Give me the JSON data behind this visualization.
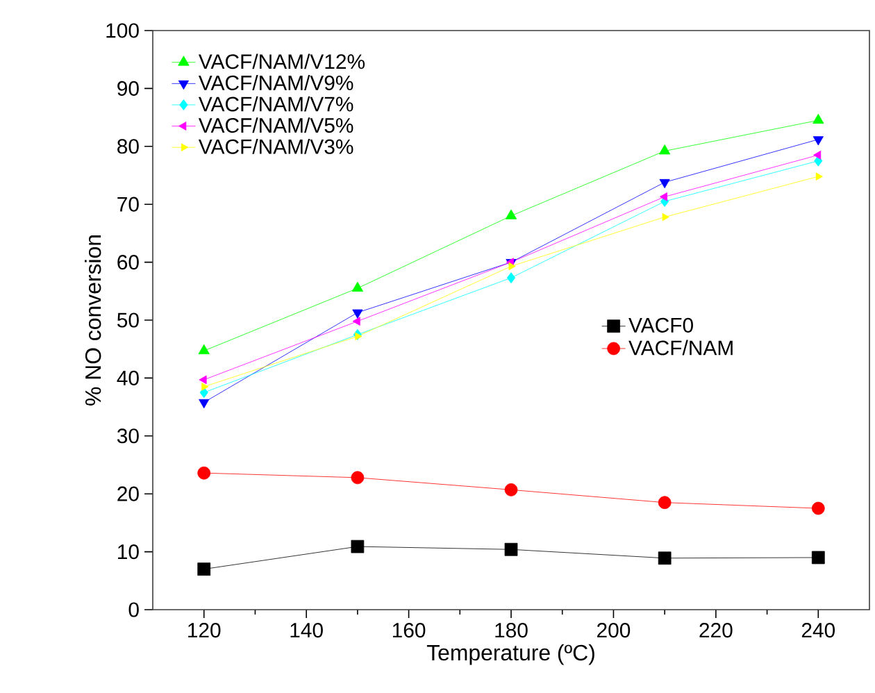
{
  "chart_data": {
    "type": "line",
    "xlabel": "Temperature (ºC)",
    "ylabel": "% NO conversion",
    "x": [
      120,
      150,
      180,
      210,
      240
    ],
    "xlim": [
      110,
      250
    ],
    "xticks": [
      120,
      140,
      160,
      180,
      200,
      220,
      240
    ],
    "ylim": [
      0,
      100
    ],
    "yticks": [
      0,
      10,
      20,
      30,
      40,
      50,
      60,
      70,
      80,
      90,
      100
    ],
    "grid": false,
    "legend": "top left",
    "series": [
      {
        "name": "VACF/NAM/V12%",
        "color": "#00ff00",
        "marker": "triangle",
        "values": [
          44.7,
          55.5,
          68.0,
          79.2,
          84.5
        ]
      },
      {
        "name": "VACF/NAM/V9%",
        "color": "#0000ff",
        "marker": "triangle-down",
        "values": [
          35.8,
          51.3,
          60.0,
          73.8,
          81.2
        ]
      },
      {
        "name": "VACF/NAM/V7%",
        "color": "#00ffff",
        "marker": "diamond",
        "values": [
          37.5,
          47.5,
          57.3,
          70.5,
          77.5
        ]
      },
      {
        "name": "VACF/NAM/V5%",
        "color": "#ff00ff",
        "marker": "triangle-left",
        "values": [
          39.7,
          49.8,
          60.0,
          71.3,
          78.5
        ]
      },
      {
        "name": "VACF/NAM/V3%",
        "color": "#ffff00",
        "marker": "triangle-right",
        "values": [
          38.5,
          47.2,
          59.3,
          67.8,
          74.8
        ]
      },
      {
        "name": "VACF0",
        "color": "#000000",
        "marker": "square",
        "values": [
          7.0,
          10.9,
          10.4,
          8.9,
          9.0
        ]
      },
      {
        "name": "VACF/NAM",
        "color": "#ff0000",
        "marker": "circle",
        "values": [
          23.6,
          22.8,
          20.7,
          18.5,
          17.5
        ]
      }
    ]
  }
}
